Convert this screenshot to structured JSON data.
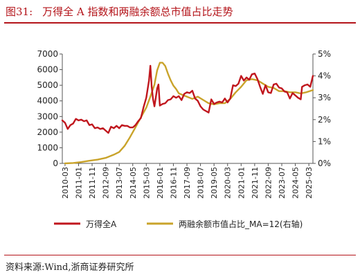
{
  "figure": {
    "label": "图31:",
    "title": "万得全 A 指数和两融余额总市值占比走势",
    "source": "资料来源:Wind,浙商证券研究所"
  },
  "colors": {
    "wind_a": "#c0161d",
    "ratio": "#c9a32a",
    "accent": "#b4141a"
  },
  "chart_data": {
    "type": "line",
    "x_tick_labels": [
      "2010-03",
      "2011-01",
      "2011-11",
      "2012-09",
      "2013-07",
      "2014-05",
      "2015-03",
      "2016-01",
      "2016-11",
      "2017-09",
      "2018-07",
      "2019-05",
      "2020-03",
      "2021-01",
      "2021-11",
      "2022-09",
      "2023-07",
      "2024-05",
      "2025-03"
    ],
    "x_range": [
      "2010-01",
      "2025-06"
    ],
    "y_left": {
      "range": [
        0,
        7000
      ],
      "ticks": [
        "0",
        "1000",
        "2000",
        "3000",
        "4000",
        "5000",
        "6000",
        "7000"
      ]
    },
    "y_right": {
      "range": [
        0,
        5
      ],
      "ticks": [
        "0%",
        "1%",
        "2%",
        "3%",
        "4%",
        "5%"
      ],
      "unit": "%"
    },
    "legend": {
      "placement": "bottom",
      "entries": [
        "万得全A",
        "两融余额市值占比_MA=12(右轴)"
      ]
    },
    "grid": false,
    "series": [
      {
        "name": "万得全A",
        "axis": "left",
        "points": [
          [
            "2010-01",
            2750
          ],
          [
            "2010-03",
            2600
          ],
          [
            "2010-05",
            2200
          ],
          [
            "2010-07",
            2450
          ],
          [
            "2010-09",
            2550
          ],
          [
            "2010-11",
            2850
          ],
          [
            "2011-01",
            2750
          ],
          [
            "2011-03",
            2800
          ],
          [
            "2011-05",
            2700
          ],
          [
            "2011-07",
            2750
          ],
          [
            "2011-09",
            2450
          ],
          [
            "2011-11",
            2500
          ],
          [
            "2012-01",
            2250
          ],
          [
            "2012-03",
            2300
          ],
          [
            "2012-05",
            2200
          ],
          [
            "2012-07",
            2250
          ],
          [
            "2012-09",
            2100
          ],
          [
            "2012-11",
            1950
          ],
          [
            "2013-01",
            2350
          ],
          [
            "2013-03",
            2250
          ],
          [
            "2013-05",
            2400
          ],
          [
            "2013-07",
            2250
          ],
          [
            "2013-09",
            2450
          ],
          [
            "2013-11",
            2400
          ],
          [
            "2014-01",
            2400
          ],
          [
            "2014-03",
            2300
          ],
          [
            "2014-05",
            2300
          ],
          [
            "2014-07",
            2450
          ],
          [
            "2014-09",
            2700
          ],
          [
            "2014-11",
            2900
          ],
          [
            "2015-01",
            3600
          ],
          [
            "2015-03",
            4200
          ],
          [
            "2015-05",
            5300
          ],
          [
            "2015-06",
            6250
          ],
          [
            "2015-07",
            4900
          ],
          [
            "2015-08",
            4100
          ],
          [
            "2015-09",
            3650
          ],
          [
            "2015-10",
            4200
          ],
          [
            "2015-11",
            4800
          ],
          [
            "2015-12",
            5050
          ],
          [
            "2016-01",
            3700
          ],
          [
            "2016-03",
            3800
          ],
          [
            "2016-05",
            3850
          ],
          [
            "2016-07",
            4050
          ],
          [
            "2016-09",
            4100
          ],
          [
            "2016-11",
            4300
          ],
          [
            "2017-01",
            4200
          ],
          [
            "2017-03",
            4300
          ],
          [
            "2017-05",
            4050
          ],
          [
            "2017-07",
            4450
          ],
          [
            "2017-09",
            4550
          ],
          [
            "2017-11",
            4500
          ],
          [
            "2018-01",
            4650
          ],
          [
            "2018-03",
            4150
          ],
          [
            "2018-05",
            4000
          ],
          [
            "2018-07",
            3650
          ],
          [
            "2018-09",
            3450
          ],
          [
            "2018-11",
            3350
          ],
          [
            "2019-01",
            3250
          ],
          [
            "2019-03",
            4100
          ],
          [
            "2019-05",
            3800
          ],
          [
            "2019-07",
            3900
          ],
          [
            "2019-09",
            3950
          ],
          [
            "2019-11",
            3900
          ],
          [
            "2020-01",
            4150
          ],
          [
            "2020-03",
            3900
          ],
          [
            "2020-05",
            4150
          ],
          [
            "2020-07",
            5000
          ],
          [
            "2020-09",
            4950
          ],
          [
            "2020-11",
            5100
          ],
          [
            "2021-01",
            5600
          ],
          [
            "2021-03",
            5300
          ],
          [
            "2021-05",
            5500
          ],
          [
            "2021-07",
            5350
          ],
          [
            "2021-09",
            5700
          ],
          [
            "2021-11",
            5750
          ],
          [
            "2022-01",
            5400
          ],
          [
            "2022-03",
            4900
          ],
          [
            "2022-05",
            4450
          ],
          [
            "2022-07",
            5000
          ],
          [
            "2022-09",
            4550
          ],
          [
            "2022-11",
            4500
          ],
          [
            "2023-01",
            5050
          ],
          [
            "2023-03",
            5100
          ],
          [
            "2023-05",
            4850
          ],
          [
            "2023-07",
            4800
          ],
          [
            "2023-09",
            4600
          ],
          [
            "2023-11",
            4550
          ],
          [
            "2024-01",
            4150
          ],
          [
            "2024-03",
            4500
          ],
          [
            "2024-05",
            4350
          ],
          [
            "2024-07",
            4200
          ],
          [
            "2024-09",
            4100
          ],
          [
            "2024-10",
            4900
          ],
          [
            "2024-12",
            5000
          ],
          [
            "2025-02",
            5050
          ],
          [
            "2025-04",
            4900
          ],
          [
            "2025-06",
            5600
          ]
        ]
      },
      {
        "name": "两融余额市值占比_MA=12(右轴)",
        "axis": "right",
        "points": [
          [
            "2010-03",
            0.0
          ],
          [
            "2010-09",
            0.02
          ],
          [
            "2011-03",
            0.06
          ],
          [
            "2011-09",
            0.12
          ],
          [
            "2012-03",
            0.17
          ],
          [
            "2012-09",
            0.25
          ],
          [
            "2013-03",
            0.4
          ],
          [
            "2013-07",
            0.52
          ],
          [
            "2013-11",
            0.8
          ],
          [
            "2014-03",
            1.2
          ],
          [
            "2014-07",
            1.65
          ],
          [
            "2014-11",
            2.1
          ],
          [
            "2015-03",
            2.55
          ],
          [
            "2015-06",
            3.05
          ],
          [
            "2015-09",
            3.6
          ],
          [
            "2015-11",
            4.25
          ],
          [
            "2016-01",
            4.6
          ],
          [
            "2016-03",
            4.6
          ],
          [
            "2016-05",
            4.45
          ],
          [
            "2016-07",
            4.1
          ],
          [
            "2016-09",
            3.8
          ],
          [
            "2016-11",
            3.55
          ],
          [
            "2017-01",
            3.4
          ],
          [
            "2017-03",
            3.2
          ],
          [
            "2017-05",
            3.15
          ],
          [
            "2017-09",
            3.05
          ],
          [
            "2018-01",
            2.95
          ],
          [
            "2018-05",
            3.05
          ],
          [
            "2018-09",
            2.9
          ],
          [
            "2019-01",
            2.75
          ],
          [
            "2019-05",
            2.7
          ],
          [
            "2019-09",
            2.75
          ],
          [
            "2020-01",
            2.75
          ],
          [
            "2020-05",
            2.95
          ],
          [
            "2020-09",
            3.25
          ],
          [
            "2021-01",
            3.5
          ],
          [
            "2021-05",
            3.8
          ],
          [
            "2021-09",
            3.85
          ],
          [
            "2022-01",
            3.8
          ],
          [
            "2022-05",
            3.65
          ],
          [
            "2022-09",
            3.5
          ],
          [
            "2023-01",
            3.45
          ],
          [
            "2023-05",
            3.3
          ],
          [
            "2023-09",
            3.3
          ],
          [
            "2024-01",
            3.25
          ],
          [
            "2024-05",
            3.25
          ],
          [
            "2024-09",
            3.2
          ],
          [
            "2025-01",
            3.25
          ],
          [
            "2025-06",
            3.35
          ]
        ]
      }
    ]
  }
}
